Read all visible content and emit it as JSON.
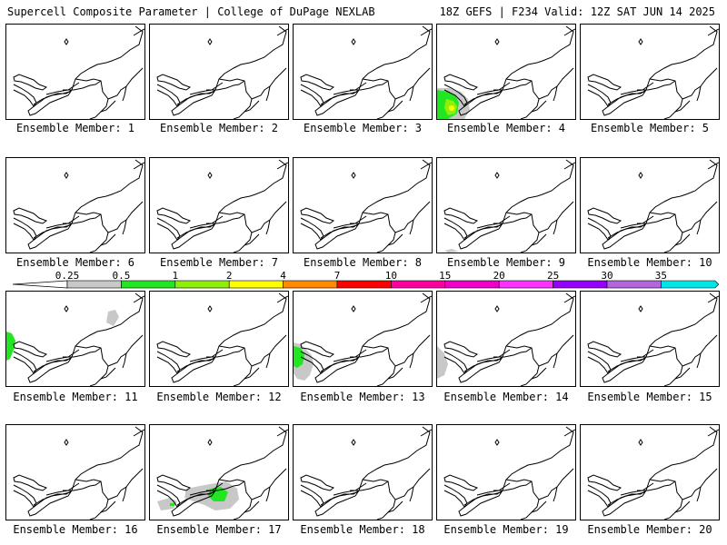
{
  "header": {
    "left": "Supercell Composite Parameter | College of DuPage NEXLAB",
    "right": "18Z GEFS | F234 Valid: 12Z SAT JUN 14 2025"
  },
  "colorbar": {
    "labels": [
      "0.25",
      "0.5",
      "1",
      "2",
      "4",
      "7",
      "10",
      "15",
      "20",
      "25",
      "30",
      "35"
    ],
    "colors": [
      "#c8c8c8",
      "#22e622",
      "#8ef00a",
      "#ffff00",
      "#ff8a00",
      "#ff0000",
      "#ff00a0",
      "#f000c8",
      "#ff32ff",
      "#9600ff",
      "#b464dc",
      "#00e6e6"
    ]
  },
  "panels": [
    {
      "label": "Ensemble Member: 1"
    },
    {
      "label": "Ensemble Member: 2"
    },
    {
      "label": "Ensemble Member: 3"
    },
    {
      "label": "Ensemble Member: 4"
    },
    {
      "label": "Ensemble Member: 5"
    },
    {
      "label": "Ensemble Member: 6"
    },
    {
      "label": "Ensemble Member: 7"
    },
    {
      "label": "Ensemble Member: 8"
    },
    {
      "label": "Ensemble Member: 9"
    },
    {
      "label": "Ensemble Member: 10"
    },
    {
      "label": "Ensemble Member: 11"
    },
    {
      "label": "Ensemble Member: 12"
    },
    {
      "label": "Ensemble Member: 13"
    },
    {
      "label": "Ensemble Member: 14"
    },
    {
      "label": "Ensemble Member: 15"
    },
    {
      "label": "Ensemble Member: 16"
    },
    {
      "label": "Ensemble Member: 17"
    },
    {
      "label": "Ensemble Member: 18"
    },
    {
      "label": "Ensemble Member: 19"
    },
    {
      "label": "Ensemble Member: 20"
    }
  ]
}
